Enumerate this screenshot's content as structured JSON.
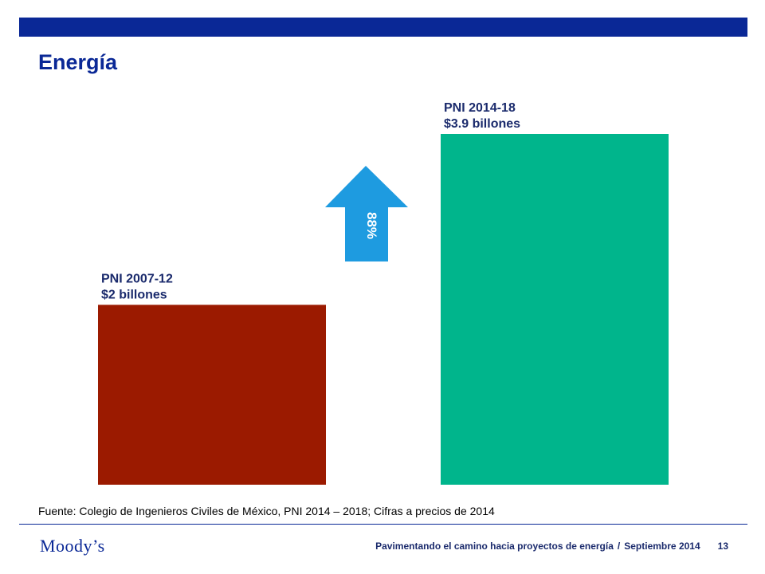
{
  "header": {
    "title": "Energía"
  },
  "chart_data": {
    "type": "bar",
    "categories": [
      "PNI 2007-12",
      "PNI 2014-18"
    ],
    "values": [
      2,
      3.9
    ],
    "value_labels": [
      "$2 billones",
      "$3.9 billones"
    ],
    "bar_colors": [
      "#9b1a00",
      "#00b58c"
    ],
    "ylim": [
      0,
      3.9
    ],
    "grid": false,
    "annotation": {
      "label": "88%",
      "color": "#1e9be0"
    }
  },
  "source_note": "Fuente: Colegio de Ingenieros Civiles de México, PNI 2014 – 2018; Cifras a precios de 2014",
  "footer": {
    "logo_text": "Moody’s",
    "presentation": "Pavimentando el camino hacia proyectos de energía",
    "separator": "/",
    "date": "Septiembre 2014",
    "page_number": "13"
  },
  "colors": {
    "brand_blue": "#0a2896",
    "title_blue": "#0a2896",
    "footer_text": "#1a2a6c"
  }
}
